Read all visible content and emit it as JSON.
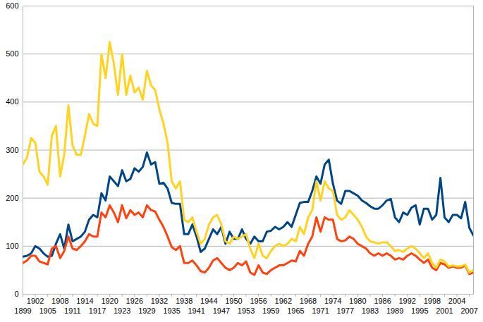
{
  "chart_data": {
    "type": "line",
    "x": [
      1899,
      1900,
      1901,
      1902,
      1903,
      1904,
      1905,
      1906,
      1907,
      1908,
      1909,
      1910,
      1911,
      1912,
      1913,
      1914,
      1915,
      1916,
      1917,
      1918,
      1919,
      1920,
      1921,
      1922,
      1923,
      1924,
      1925,
      1926,
      1927,
      1928,
      1929,
      1930,
      1931,
      1932,
      1933,
      1934,
      1935,
      1936,
      1937,
      1938,
      1939,
      1940,
      1941,
      1942,
      1943,
      1944,
      1945,
      1946,
      1947,
      1948,
      1949,
      1950,
      1951,
      1952,
      1953,
      1954,
      1955,
      1956,
      1957,
      1958,
      1959,
      1960,
      1961,
      1962,
      1963,
      1964,
      1965,
      1966,
      1967,
      1968,
      1969,
      1970,
      1971,
      1972,
      1973,
      1974,
      1975,
      1976,
      1977,
      1978,
      1979,
      1980,
      1981,
      1982,
      1983,
      1984,
      1985,
      1986,
      1987,
      1988,
      1989,
      1990,
      1991,
      1992,
      1993,
      1994,
      1995,
      1996,
      1997,
      1998,
      1999,
      2000,
      2001,
      2002,
      2003,
      2004,
      2005,
      2006,
      2007,
      2008
    ],
    "series": [
      {
        "color": "#004586",
        "values": [
          78,
          80,
          85,
          100,
          95,
          85,
          78,
          80,
          105,
          125,
          95,
          145,
          110,
          115,
          120,
          130,
          155,
          165,
          160,
          210,
          195,
          245,
          235,
          225,
          258,
          235,
          240,
          262,
          255,
          265,
          295,
          270,
          275,
          230,
          232,
          220,
          190,
          188,
          188,
          125,
          125,
          145,
          120,
          88,
          95,
          115,
          135,
          125,
          140,
          105,
          130,
          115,
          115,
          135,
          115,
          105,
          120,
          110,
          110,
          130,
          132,
          140,
          135,
          140,
          150,
          140,
          165,
          190,
          192,
          192,
          215,
          245,
          230,
          270,
          280,
          230,
          195,
          188,
          215,
          215,
          210,
          205,
          195,
          190,
          183,
          178,
          178,
          185,
          195,
          198,
          160,
          150,
          170,
          165,
          180,
          185,
          145,
          178,
          178,
          155,
          165,
          242,
          160,
          150,
          165,
          165,
          158,
          192,
          138,
          122
        ]
      },
      {
        "color": "#FF420E",
        "values": [
          65,
          70,
          80,
          80,
          68,
          65,
          62,
          95,
          100,
          75,
          90,
          120,
          95,
          92,
          100,
          110,
          125,
          120,
          120,
          170,
          160,
          185,
          170,
          150,
          185,
          158,
          175,
          165,
          170,
          160,
          185,
          175,
          172,
          155,
          140,
          120,
          98,
          92,
          100,
          65,
          65,
          70,
          60,
          48,
          45,
          55,
          70,
          75,
          65,
          55,
          50,
          55,
          65,
          60,
          68,
          45,
          40,
          60,
          45,
          42,
          50,
          55,
          60,
          60,
          65,
          70,
          68,
          90,
          80,
          105,
          120,
          160,
          130,
          160,
          155,
          155,
          115,
          110,
          112,
          120,
          115,
          105,
          100,
          95,
          85,
          80,
          85,
          80,
          85,
          80,
          72,
          75,
          72,
          80,
          85,
          80,
          72,
          65,
          72,
          55,
          50,
          65,
          62,
          55,
          58,
          55,
          55,
          60,
          42,
          45
        ]
      },
      {
        "color": "#FFD320",
        "values": [
          270,
          285,
          325,
          315,
          255,
          245,
          228,
          330,
          350,
          245,
          290,
          393,
          310,
          290,
          290,
          330,
          375,
          355,
          350,
          500,
          450,
          525,
          480,
          415,
          500,
          415,
          455,
          420,
          430,
          405,
          465,
          435,
          425,
          385,
          355,
          315,
          235,
          220,
          235,
          155,
          150,
          160,
          130,
          105,
          115,
          145,
          160,
          165,
          145,
          110,
          105,
          120,
          115,
          120,
          125,
          95,
          75,
          105,
          80,
          75,
          90,
          100,
          105,
          100,
          105,
          115,
          110,
          140,
          125,
          160,
          175,
          235,
          195,
          235,
          220,
          215,
          165,
          155,
          160,
          175,
          165,
          155,
          140,
          120,
          110,
          108,
          105,
          108,
          108,
          100,
          90,
          92,
          88,
          95,
          100,
          95,
          85,
          75,
          85,
          65,
          55,
          72,
          68,
          58,
          60,
          58,
          58,
          62,
          45,
          50
        ]
      }
    ],
    "xlim": [
      1899,
      2008
    ],
    "xticks": [
      1899,
      1902,
      1905,
      1908,
      1911,
      1914,
      1917,
      1920,
      1923,
      1926,
      1929,
      1932,
      1935,
      1938,
      1941,
      1944,
      1947,
      1950,
      1953,
      1956,
      1959,
      1962,
      1965,
      1968,
      1971,
      1974,
      1977,
      1980,
      1983,
      1986,
      1989,
      1992,
      1995,
      1998,
      2001,
      2004,
      2007
    ],
    "ylim": [
      0,
      600
    ],
    "yticks": [
      0,
      100,
      200,
      300,
      400,
      500,
      600
    ],
    "grid": true
  }
}
